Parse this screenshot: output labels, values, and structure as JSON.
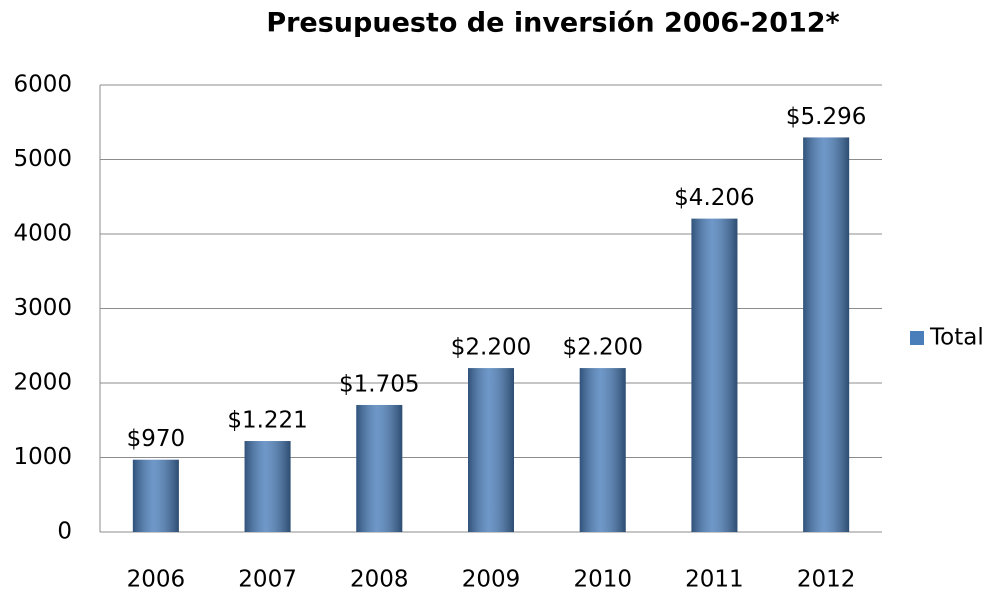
{
  "chart_data": {
    "type": "bar",
    "title": "Presupuesto de inversión 2006-2012*",
    "categories": [
      "2006",
      "2007",
      "2008",
      "2009",
      "2010",
      "2011",
      "2012"
    ],
    "series": [
      {
        "name": "Total",
        "color": "#4a7ebb",
        "values": [
          970,
          1221,
          1705,
          2200,
          2200,
          4206,
          5296
        ],
        "value_labels": [
          "$970",
          "$1.221",
          "$1.705",
          "$2.200",
          "$2.200",
          "$4.206",
          "$5.296"
        ]
      }
    ],
    "ylim": [
      0,
      6000
    ],
    "yticks": [
      0,
      1000,
      2000,
      3000,
      4000,
      5000,
      6000
    ],
    "grid": true,
    "legend": "right"
  }
}
